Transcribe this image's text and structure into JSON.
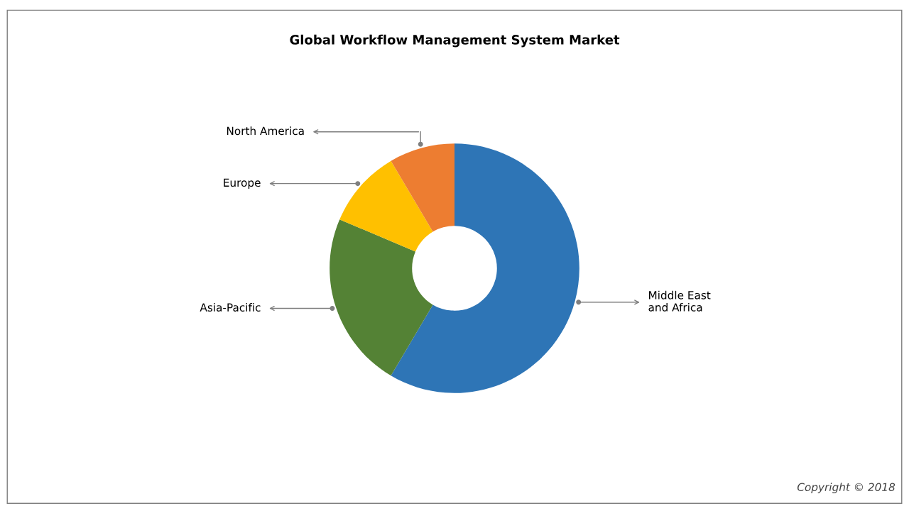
{
  "chart_data": {
    "type": "donut",
    "title": "Global Workflow Management System Market",
    "categories": [
      "Middle East\nand Africa",
      "Asia-Pacific",
      "Europe",
      "North America"
    ],
    "values": [
      58.5,
      22.9,
      10.1,
      8.5
    ],
    "colors": [
      "#2e75b6",
      "#548235",
      "#ffc000",
      "#ed7d31"
    ],
    "legend": false,
    "annotations": [
      "Copyright © 2018"
    ]
  }
}
